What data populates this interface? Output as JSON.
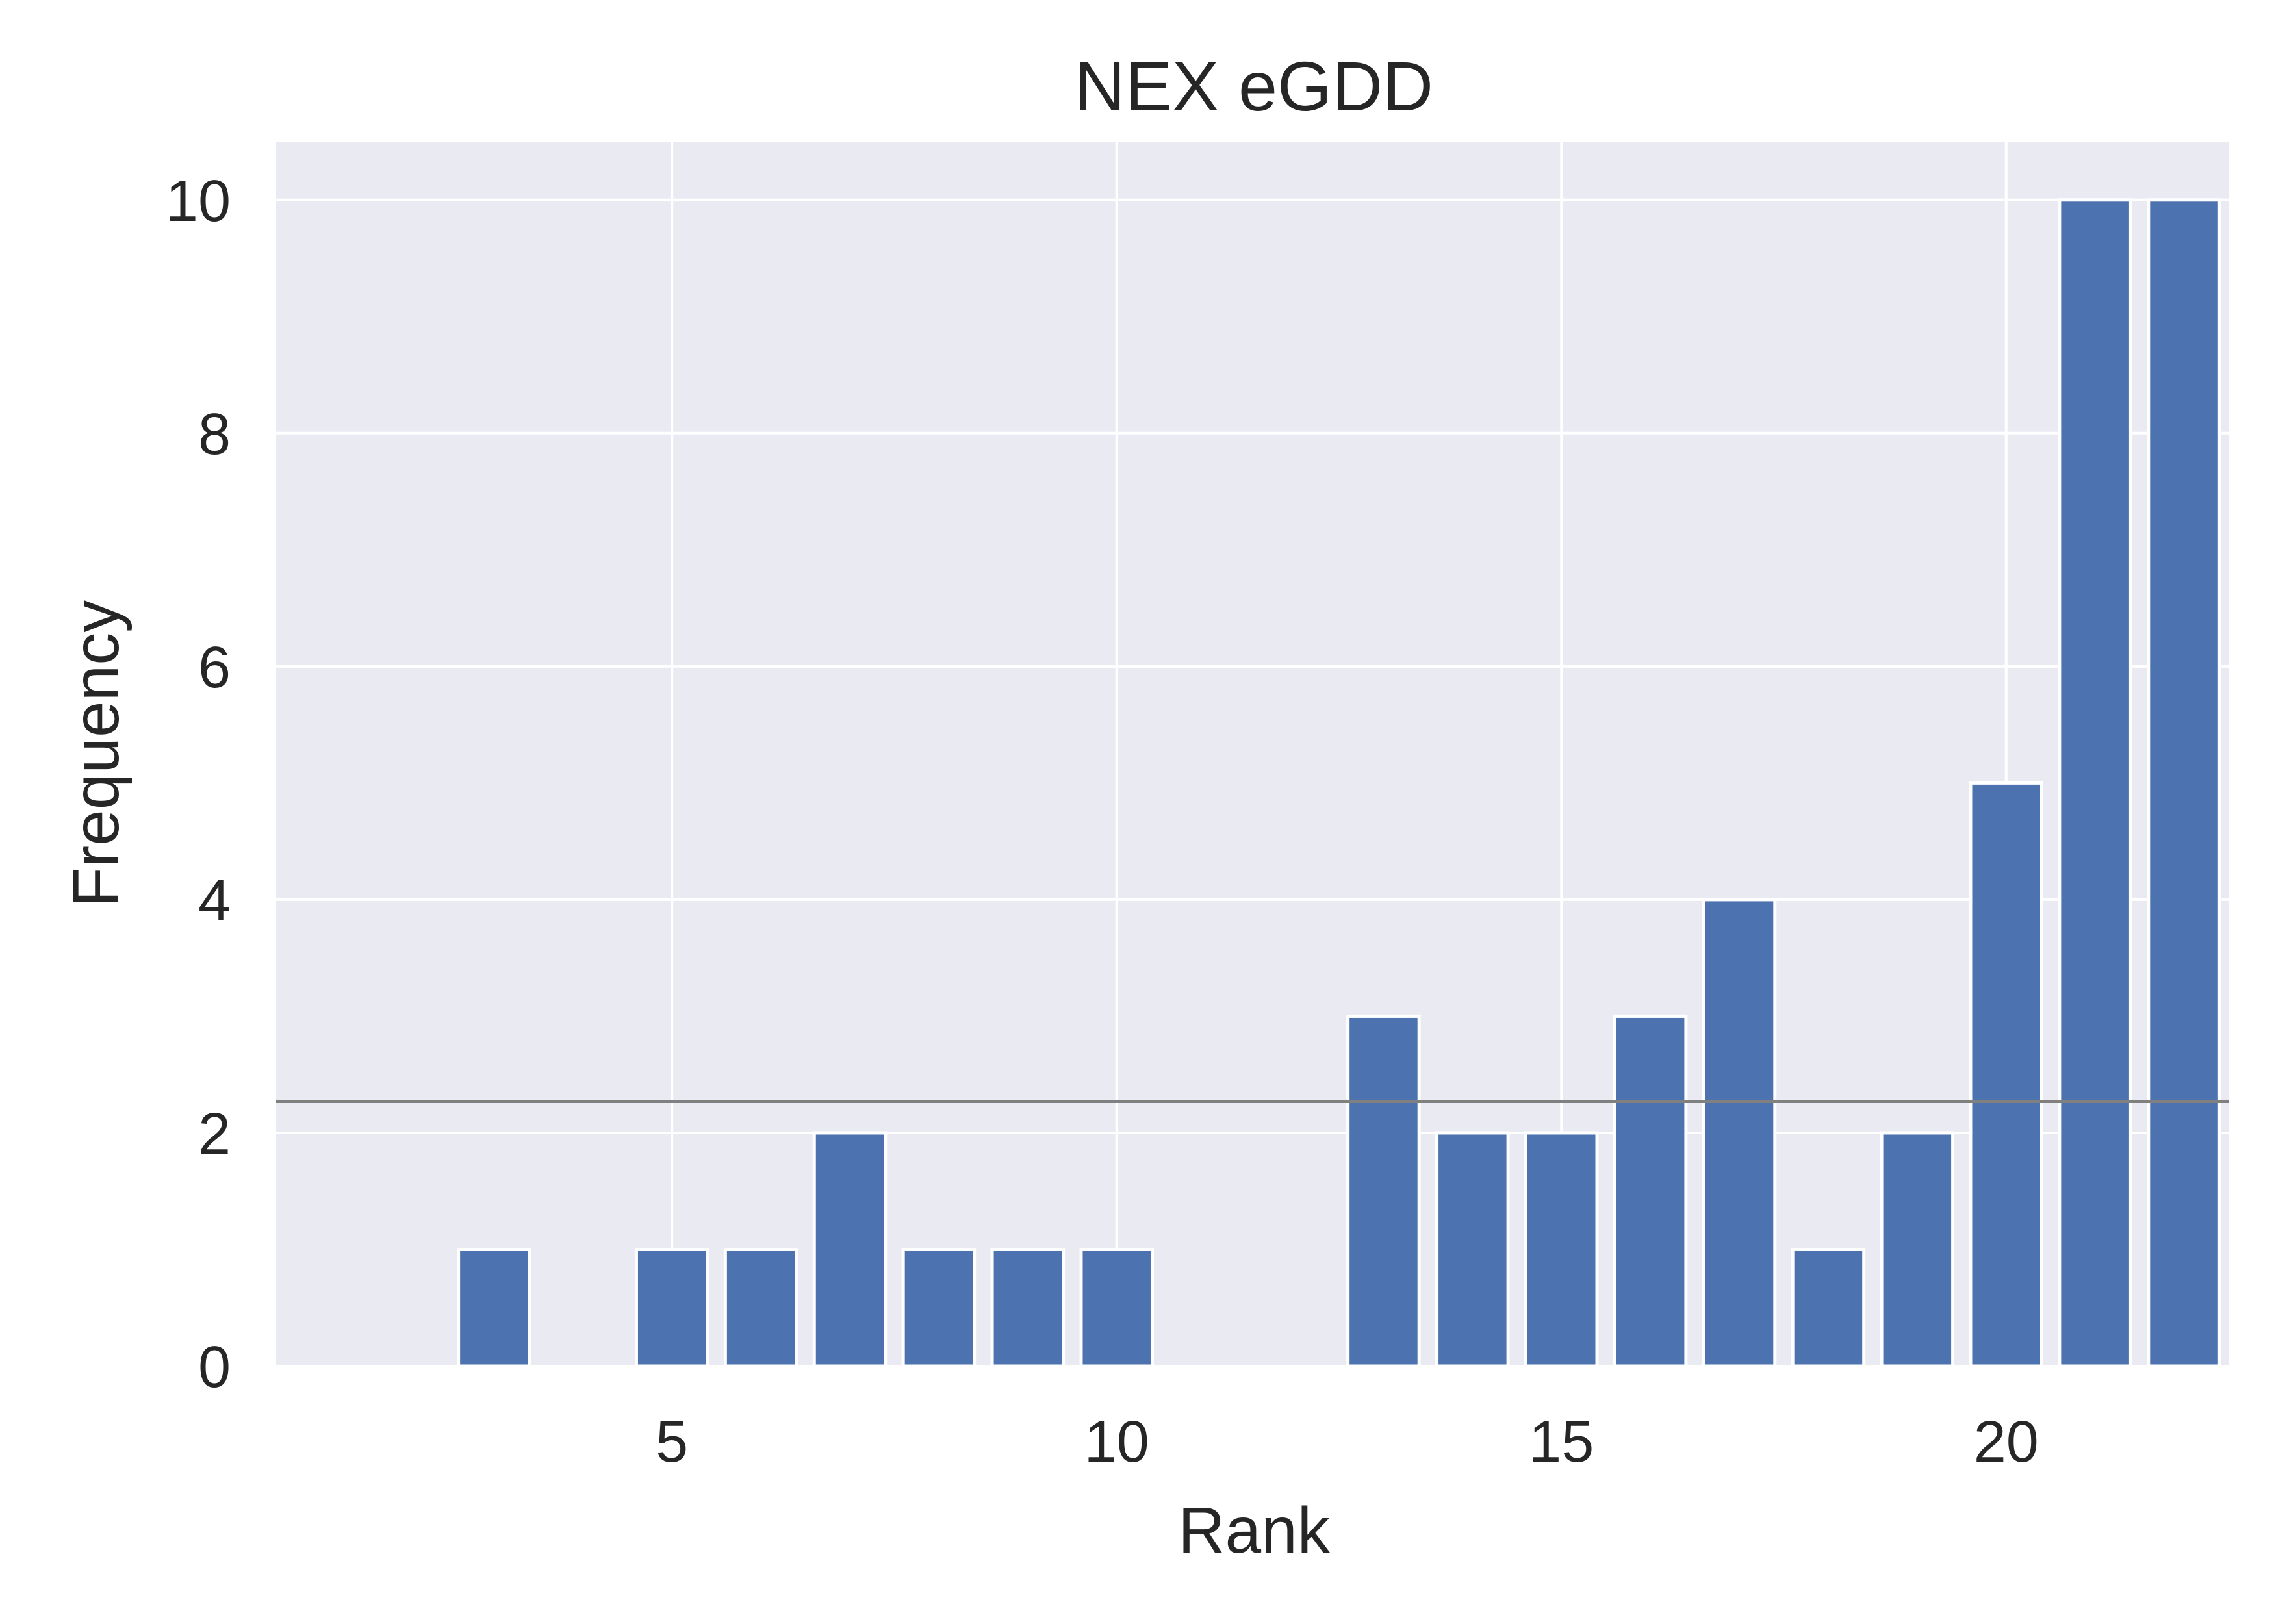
{
  "chart_data": {
    "type": "bar",
    "title": "NEX eGDD",
    "xlabel": "Rank",
    "ylabel": "Frequency",
    "x": [
      1,
      2,
      3,
      4,
      5,
      6,
      7,
      8,
      9,
      10,
      11,
      12,
      13,
      14,
      15,
      16,
      17,
      18,
      19,
      20,
      21,
      22
    ],
    "values": [
      0,
      0,
      1,
      0,
      1,
      1,
      2,
      1,
      1,
      1,
      0,
      0,
      3,
      2,
      2,
      3,
      4,
      1,
      2,
      5,
      10,
      10
    ],
    "xlim": [
      0.55,
      22.5
    ],
    "ylim": [
      0,
      10.5
    ],
    "xticks": [
      5,
      10,
      15,
      20
    ],
    "yticks": [
      0,
      2,
      4,
      6,
      8,
      10
    ],
    "bar_width": 0.8,
    "reference_line": {
      "y": 2.27,
      "color": "#808080"
    },
    "grid": true,
    "colors": {
      "bar": "#4c72b0",
      "background": "#eaeaf2",
      "grid": "#ffffff"
    }
  }
}
